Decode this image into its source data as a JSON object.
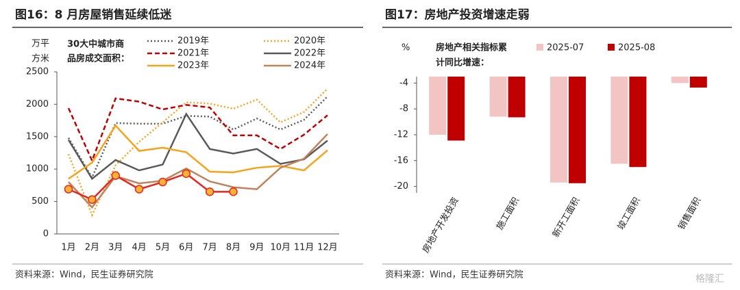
{
  "chart_data": [
    {
      "type": "line",
      "title": "图16：8 月房屋销售延续低迷",
      "y_label": [
        "万平",
        "方米"
      ],
      "legend_title": [
        "30大中城市商",
        "品房成交面积："
      ],
      "categories": [
        "1月",
        "2月",
        "3月",
        "4月",
        "5月",
        "6月",
        "7月",
        "8月",
        "9月",
        "10月",
        "11月",
        "12月"
      ],
      "ylim": [
        0,
        2500
      ],
      "yticks": [
        0,
        500,
        1000,
        1500,
        2000,
        2500
      ],
      "series": [
        {
          "name": "2019年",
          "color": "#595959",
          "style": "dotted",
          "values": [
            1480,
            870,
            1710,
            1700,
            1700,
            1820,
            1810,
            1610,
            1780,
            1610,
            1760,
            2120
          ]
        },
        {
          "name": "2020年",
          "color": "#f7a21b",
          "style": "dotted",
          "values": [
            1230,
            290,
            1060,
            1420,
            1720,
            2030,
            2010,
            1930,
            2070,
            1720,
            1880,
            2240
          ]
        },
        {
          "name": "2021年",
          "color": "#c00000",
          "style": "dashed",
          "values": [
            1940,
            1130,
            2090,
            2040,
            1920,
            1990,
            1950,
            1520,
            1520,
            1310,
            1530,
            1830
          ]
        },
        {
          "name": "2022年",
          "color": "#595959",
          "style": "solid",
          "values": [
            1450,
            850,
            1140,
            980,
            1070,
            1850,
            1310,
            1240,
            1310,
            1080,
            1150,
            1440
          ]
        },
        {
          "name": "2023年",
          "color": "#f7a21b",
          "style": "solid",
          "values": [
            850,
            1100,
            1670,
            1280,
            1330,
            1260,
            960,
            950,
            1020,
            1050,
            980,
            1290
          ]
        },
        {
          "name": "2024年",
          "color": "#c0825a",
          "style": "solid",
          "values": [
            800,
            410,
            890,
            780,
            820,
            1010,
            810,
            720,
            690,
            1020,
            1160,
            1540
          ]
        },
        {
          "color": "#e8251e",
          "style": "solid",
          "markers": true,
          "marker_color": "#f9b233",
          "values": [
            690,
            530,
            900,
            690,
            800,
            930,
            650,
            650,
            null,
            null,
            null,
            null
          ]
        }
      ],
      "source": "资料来源：Wind，民生证券研究院"
    },
    {
      "type": "bar",
      "title": "图17：房地产投资增速走弱",
      "y_label": "%",
      "legend_title": [
        "房地产相关指标累",
        "计同比增速："
      ],
      "categories": [
        "房地产开发投资",
        "施工面积",
        "新开工面积",
        "竣工面积",
        "销售面积"
      ],
      "ylim": [
        -3,
        -21
      ],
      "yticks": [
        -4,
        -8,
        -12,
        -16,
        -20
      ],
      "series": [
        {
          "name": "2025-07",
          "color": "#f2c4c4",
          "values": [
            -12.0,
            -9.2,
            -19.4,
            -16.5,
            -4.0
          ]
        },
        {
          "name": "2025-08",
          "color": "#c00000",
          "values": [
            -12.9,
            -9.3,
            -19.5,
            -17.0,
            -4.7
          ]
        }
      ],
      "source": "资料来源：Wind，民生证券研究院"
    }
  ],
  "watermark": "格隆汇"
}
